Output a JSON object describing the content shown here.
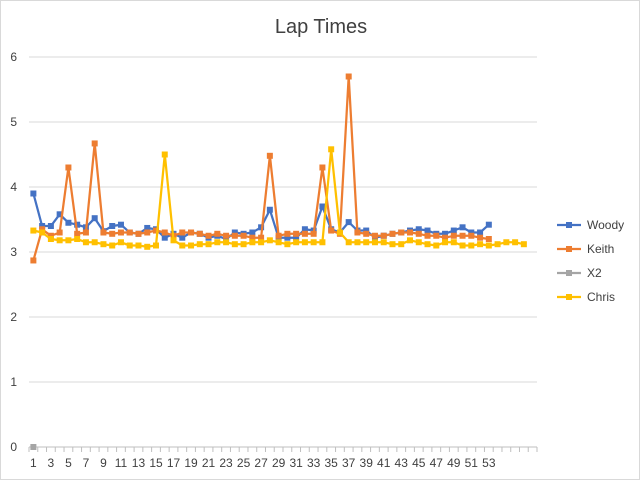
{
  "chart_data": {
    "type": "line",
    "title": "Lap Times",
    "xlabel": "",
    "ylabel": "",
    "ylim": [
      0,
      6
    ],
    "yticks": [
      0,
      1,
      2,
      3,
      4,
      5,
      6
    ],
    "x_count": 58,
    "x_tick_labels": [
      1,
      3,
      5,
      7,
      9,
      11,
      13,
      15,
      17,
      19,
      21,
      23,
      25,
      27,
      29,
      31,
      33,
      35,
      37,
      39,
      41,
      43,
      45,
      47,
      49,
      51,
      53
    ],
    "grid": "horizontal",
    "legend_position": "right",
    "series": [
      {
        "name": "Woody",
        "color": "#4472c4",
        "values": [
          3.9,
          3.4,
          3.4,
          3.58,
          3.45,
          3.42,
          3.38,
          3.52,
          3.32,
          3.4,
          3.42,
          3.3,
          3.28,
          3.37,
          3.35,
          3.22,
          3.28,
          3.22,
          3.3,
          3.28,
          3.22,
          3.25,
          3.2,
          3.3,
          3.28,
          3.3,
          3.38,
          3.65,
          3.22,
          3.22,
          3.22,
          3.35,
          3.33,
          3.7,
          3.35,
          3.3,
          3.46,
          3.33,
          3.33,
          3.22,
          3.25,
          3.28,
          3.3,
          3.33,
          3.35,
          3.33,
          3.28,
          3.28,
          3.33,
          3.38,
          3.3,
          3.3,
          3.42
        ]
      },
      {
        "name": "Keith",
        "color": "#ed7d31",
        "values": [
          2.87,
          3.35,
          3.25,
          3.3,
          4.3,
          3.28,
          3.3,
          4.67,
          3.3,
          3.28,
          3.3,
          3.3,
          3.28,
          3.3,
          3.33,
          3.3,
          3.25,
          3.3,
          3.3,
          3.28,
          3.25,
          3.28,
          3.25,
          3.25,
          3.25,
          3.22,
          3.22,
          4.48,
          3.25,
          3.28,
          3.28,
          3.28,
          3.28,
          4.3,
          3.33,
          3.28,
          5.7,
          3.3,
          3.28,
          3.25,
          3.25,
          3.28,
          3.3,
          3.3,
          3.28,
          3.25,
          3.25,
          3.22,
          3.25,
          3.25,
          3.25,
          3.22,
          3.2
        ]
      },
      {
        "name": "X2",
        "color": "#a5a5a5",
        "values": [
          0
        ]
      },
      {
        "name": "Chris",
        "color": "#ffc000",
        "values": [
          3.33,
          3.3,
          3.2,
          3.18,
          3.18,
          3.2,
          3.15,
          3.15,
          3.12,
          3.1,
          3.15,
          3.1,
          3.1,
          3.08,
          3.1,
          4.5,
          3.18,
          3.1,
          3.1,
          3.12,
          3.12,
          3.15,
          3.15,
          3.12,
          3.12,
          3.15,
          3.15,
          3.18,
          3.15,
          3.12,
          3.15,
          3.15,
          3.15,
          3.15,
          4.58,
          3.3,
          3.15,
          3.15,
          3.15,
          3.15,
          3.15,
          3.12,
          3.12,
          3.18,
          3.15,
          3.12,
          3.1,
          3.15,
          3.15,
          3.1,
          3.1,
          3.12,
          3.1,
          3.12,
          3.15,
          3.15,
          3.12
        ]
      }
    ]
  }
}
